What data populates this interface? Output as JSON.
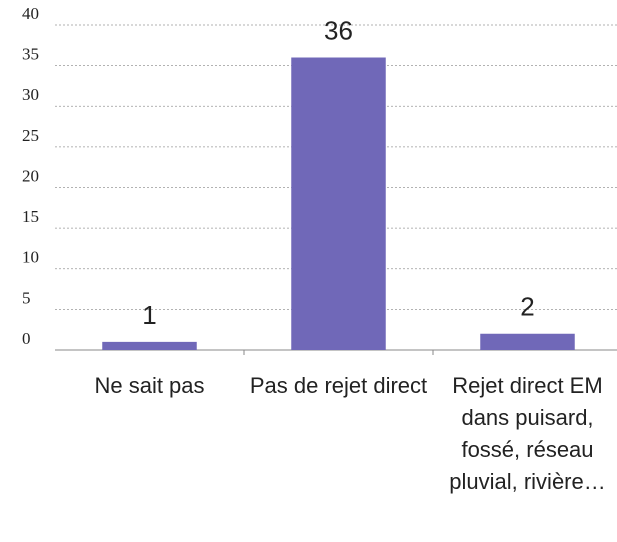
{
  "chart_data": {
    "type": "bar",
    "categories": [
      "Ne sait pas",
      "Pas de rejet direct",
      "Rejet direct EM dans puisard, fossé, réseau pluvial, rivière…"
    ],
    "values": [
      1,
      36,
      2
    ],
    "color": "#7068b8",
    "ylim": [
      0,
      40
    ],
    "yticks": [
      0,
      5,
      10,
      15,
      20,
      25,
      30,
      35,
      40
    ],
    "grid": true
  }
}
